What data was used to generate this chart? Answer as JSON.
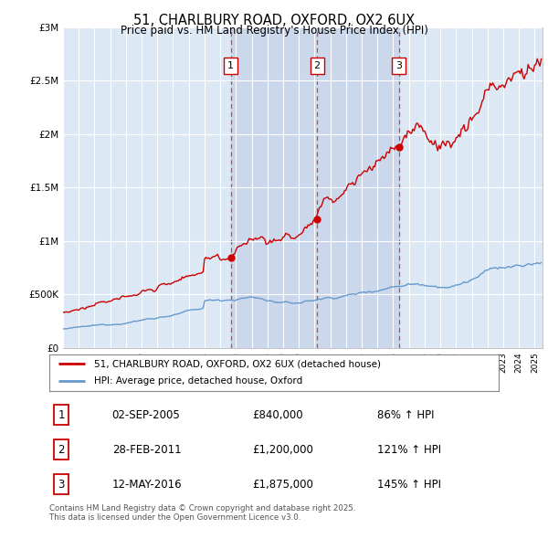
{
  "title": "51, CHARLBURY ROAD, OXFORD, OX2 6UX",
  "subtitle": "Price paid vs. HM Land Registry's House Price Index (HPI)",
  "ylim": [
    0,
    3000000
  ],
  "yticks": [
    0,
    500000,
    1000000,
    1500000,
    2000000,
    2500000,
    3000000
  ],
  "legend_line1": "51, CHARLBURY ROAD, OXFORD, OX2 6UX (detached house)",
  "legend_line2": "HPI: Average price, detached house, Oxford",
  "transactions": [
    {
      "num": 1,
      "date": "02-SEP-2005",
      "price": 840000,
      "hpi_pct": "86%",
      "year": 2005.67
    },
    {
      "num": 2,
      "date": "28-FEB-2011",
      "price": 1200000,
      "hpi_pct": "121%",
      "year": 2011.16
    },
    {
      "num": 3,
      "date": "12-MAY-2016",
      "price": 1875000,
      "hpi_pct": "145%",
      "year": 2016.36
    }
  ],
  "footnote": "Contains HM Land Registry data © Crown copyright and database right 2025.\nThis data is licensed under the Open Government Licence v3.0.",
  "line_color_property": "#cc0000",
  "line_color_hpi": "#6699cc",
  "vline_color": "#cc4444",
  "shade_color": "#dde8f5",
  "background_color": "#dde8f5",
  "plot_bg_color": "#ffffff",
  "grid_color": "#cccccc",
  "ownership_shade": "#c8d8ee"
}
